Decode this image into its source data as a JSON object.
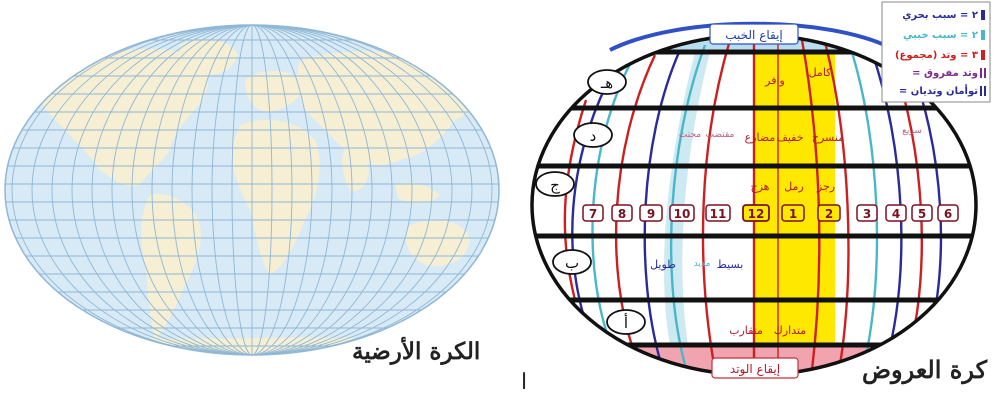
{
  "captions": {
    "earth_globe": "الكرة الأرضية",
    "arud_globe": "كرة العروض",
    "alif_mark": "ا"
  },
  "caps": {
    "top": "إيقاع الخبب",
    "bottom": "إيقاع الوتد"
  },
  "legend": [
    {
      "sym": "٢ =",
      "text": "سبب بحري",
      "color": "#2a2a9a"
    },
    {
      "sym": "٢ =",
      "text": "سبب خببي",
      "color": "#49b7c9"
    },
    {
      "sym": "٣ =",
      "text": "وتد (مجموع)",
      "color": "#cc1f1f"
    },
    {
      "sym": "=",
      "text": "وتد مفروق",
      "color": "#7a2a8a"
    },
    {
      "sym": "=",
      "text": "توأمان وتديان",
      "color": "#2a2a9a"
    }
  ],
  "bands": [
    "هـ",
    "د",
    "ج",
    "ب",
    "أ"
  ],
  "numbers": [
    "7",
    "8",
    "9",
    "10",
    "11",
    "12",
    "1",
    "2",
    "3",
    "4",
    "5",
    "6"
  ],
  "words": {
    "w1": "كامل",
    "w2": "وافر",
    "w3": "منسرح",
    "w4": "خفيف",
    "w5": "مضارع",
    "w6": "مقتضب",
    "w7": "مجتث",
    "w8": "سريع",
    "w9": "هزج",
    "w10": "رمل",
    "w11": "رجز",
    "w12": "طويل",
    "w13": "مديد",
    "w14": "بسيط",
    "w15": "متدارك",
    "w16": "متقارب"
  },
  "colors": {
    "sea": "#d8eaf5",
    "land": "#f6efd3",
    "grid": "#8fb7d6",
    "sabab_bahri": "#2a2a9a",
    "sabab_khababi": "#49b7c9",
    "watad": "#cc1f1f",
    "center_band": "#ffe800",
    "top_cap": "#b9def0",
    "bottom_cap": "#f2a3b0"
  }
}
